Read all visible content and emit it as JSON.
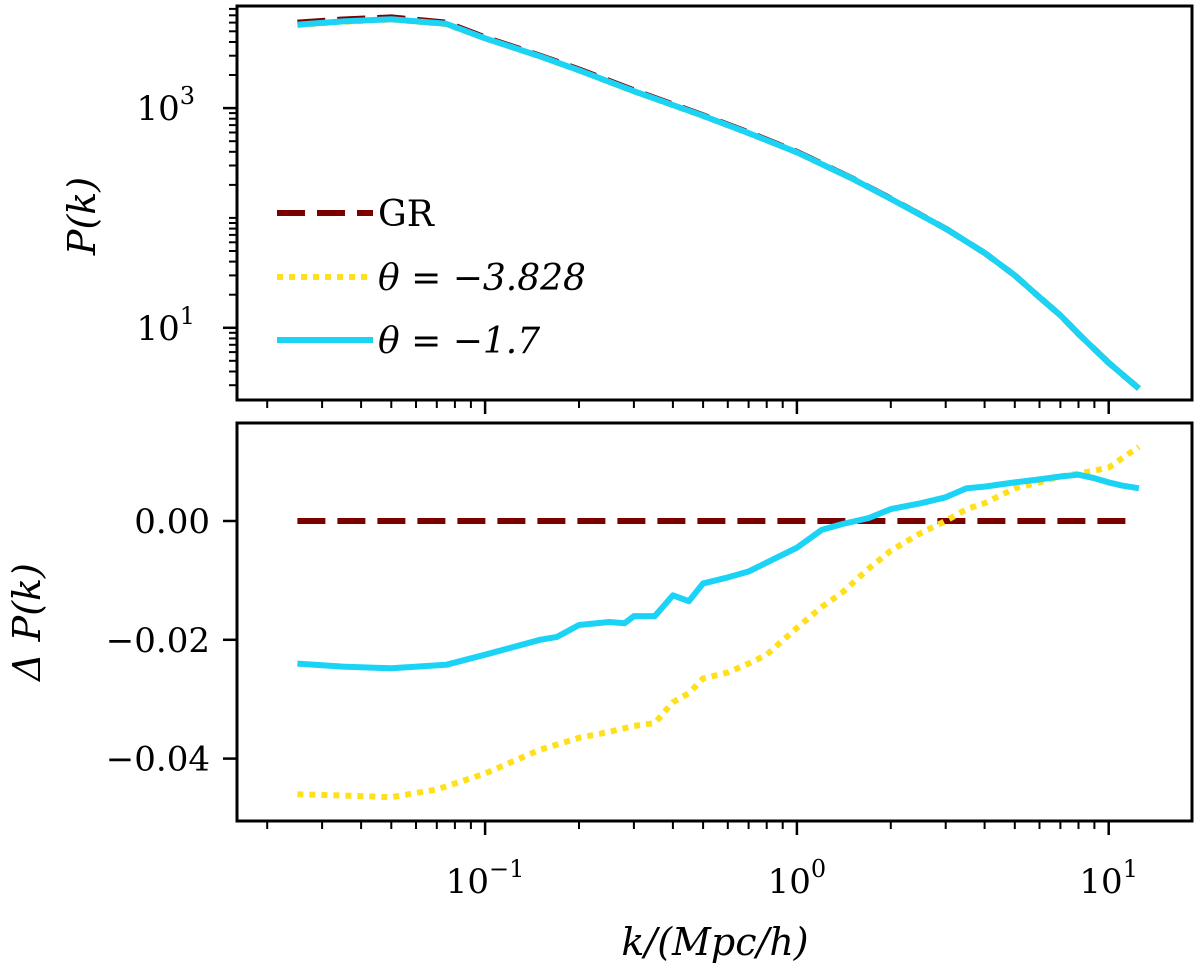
{
  "chart_data": [
    {
      "type": "line",
      "panel": "top",
      "title": "",
      "xlabel": "",
      "ylabel": "P(k)",
      "xscale": "log",
      "yscale": "log",
      "xlim": [
        0.016,
        18.5
      ],
      "ylim": [
        2.2,
        8500
      ],
      "yticks": [
        {
          "value": 1000,
          "base": "10",
          "exp": "3"
        },
        {
          "value": 10,
          "base": "10",
          "exp": "1"
        }
      ],
      "legend": {
        "position": "lower-left",
        "entries": [
          {
            "series": "GR",
            "label": "GR"
          },
          {
            "series": "theta_m3828",
            "label": "θ = −3.828"
          },
          {
            "series": "theta_m17",
            "label": "θ = −1.7"
          }
        ]
      },
      "series": [
        {
          "id": "GR",
          "name": "GR",
          "style": "dashed",
          "color": "#7b0000",
          "x": [
            0.025,
            0.035,
            0.05,
            0.075,
            0.1,
            0.15,
            0.2,
            0.3,
            0.4,
            0.5,
            0.7,
            1.0,
            1.5,
            2.0,
            3.0,
            4.0,
            5.0,
            6.0,
            7.0,
            8.0,
            10.0,
            12.5
          ],
          "y": [
            6000,
            6400,
            6700,
            6000,
            4400,
            3000,
            2250,
            1450,
            1080,
            860,
            600,
            400,
            230,
            150,
            80,
            48,
            30,
            19,
            13,
            8.8,
            4.8,
            2.8
          ]
        },
        {
          "id": "theta_m3828",
          "name": "θ = −3.828",
          "style": "dotted",
          "color": "#ffe01a",
          "x": [
            0.025,
            0.035,
            0.05,
            0.075,
            0.1,
            0.15,
            0.2,
            0.3,
            0.4,
            0.5,
            0.7,
            1.0,
            1.5,
            2.0,
            3.0,
            4.0,
            5.0,
            6.0,
            7.0,
            8.0,
            10.0,
            12.5
          ],
          "y": [
            5700,
            6100,
            6400,
            5800,
            4300,
            2950,
            2200,
            1420,
            1060,
            845,
            590,
            395,
            228,
            149,
            80,
            48,
            30,
            19,
            13,
            8.8,
            4.8,
            2.8
          ]
        },
        {
          "id": "theta_m17",
          "name": "θ = −1.7",
          "style": "solid",
          "color": "#1ad3f5",
          "x": [
            0.025,
            0.035,
            0.05,
            0.075,
            0.1,
            0.15,
            0.2,
            0.3,
            0.4,
            0.5,
            0.7,
            1.0,
            1.5,
            2.0,
            3.0,
            4.0,
            5.0,
            6.0,
            7.0,
            8.0,
            10.0,
            12.5
          ],
          "y": [
            5750,
            6150,
            6450,
            5850,
            4320,
            2960,
            2210,
            1425,
            1065,
            850,
            592,
            396,
            229,
            149,
            80,
            48,
            30,
            19,
            13,
            8.8,
            4.8,
            2.8
          ]
        }
      ]
    },
    {
      "type": "line",
      "panel": "bottom",
      "title": "",
      "xlabel": "k/(Mpc/h)",
      "ylabel": "Δ P(k)",
      "xscale": "log",
      "yscale": "linear",
      "xlim": [
        0.016,
        18.5
      ],
      "ylim": [
        -0.0505,
        0.0165
      ],
      "xticks": [
        {
          "value": 0.1,
          "base": "10",
          "exp": "−1"
        },
        {
          "value": 1,
          "base": "10",
          "exp": "0"
        },
        {
          "value": 10,
          "base": "10",
          "exp": "1"
        }
      ],
      "yticks": [
        {
          "value": 0.0,
          "label": "0.00"
        },
        {
          "value": -0.02,
          "label": "−0.02"
        },
        {
          "value": -0.04,
          "label": "−0.04"
        }
      ],
      "series": [
        {
          "id": "GR",
          "name": "GR",
          "style": "dashed",
          "color": "#7b0000",
          "x": [
            0.025,
            12.0
          ],
          "y": [
            0.0,
            0.0
          ]
        },
        {
          "id": "theta_m3828",
          "name": "θ = −3.828",
          "style": "dotted",
          "color": "#ffe01a",
          "x": [
            0.025,
            0.035,
            0.05,
            0.07,
            0.1,
            0.15,
            0.2,
            0.25,
            0.3,
            0.35,
            0.4,
            0.45,
            0.5,
            0.6,
            0.7,
            0.8,
            1.0,
            1.2,
            1.4,
            1.7,
            2.0,
            2.5,
            3.0,
            3.5,
            4.0,
            5.0,
            6.0,
            7.0,
            8.0,
            9.0,
            10.0,
            11.0,
            12.5
          ],
          "y": [
            -0.046,
            -0.0462,
            -0.0465,
            -0.0452,
            -0.0425,
            -0.0385,
            -0.0365,
            -0.0355,
            -0.0345,
            -0.034,
            -0.0305,
            -0.029,
            -0.0265,
            -0.0255,
            -0.024,
            -0.0225,
            -0.018,
            -0.0145,
            -0.012,
            -0.008,
            -0.005,
            -0.002,
            0.0,
            0.002,
            0.003,
            0.0055,
            0.0065,
            0.0075,
            0.008,
            0.0085,
            0.009,
            0.0105,
            0.0125
          ]
        },
        {
          "id": "theta_m17",
          "name": "θ = −1.7",
          "style": "solid",
          "color": "#1ad3f5",
          "x": [
            0.025,
            0.035,
            0.05,
            0.075,
            0.1,
            0.15,
            0.17,
            0.2,
            0.25,
            0.28,
            0.3,
            0.35,
            0.4,
            0.45,
            0.5,
            0.6,
            0.7,
            0.8,
            1.0,
            1.2,
            1.4,
            1.7,
            2.0,
            2.5,
            3.0,
            3.5,
            4.0,
            5.0,
            6.0,
            7.0,
            8.0,
            9.0,
            10.0,
            11.0,
            12.5
          ],
          "y": [
            -0.024,
            -0.0245,
            -0.0248,
            -0.0242,
            -0.0225,
            -0.02,
            -0.0195,
            -0.0175,
            -0.017,
            -0.0172,
            -0.016,
            -0.016,
            -0.0125,
            -0.0135,
            -0.0105,
            -0.0095,
            -0.0085,
            -0.007,
            -0.0045,
            -0.0015,
            -0.0005,
            0.0005,
            0.002,
            0.003,
            0.004,
            0.0055,
            0.0058,
            0.0065,
            0.007,
            0.0075,
            0.0078,
            0.0072,
            0.0065,
            0.006,
            0.0055
          ]
        }
      ]
    }
  ]
}
